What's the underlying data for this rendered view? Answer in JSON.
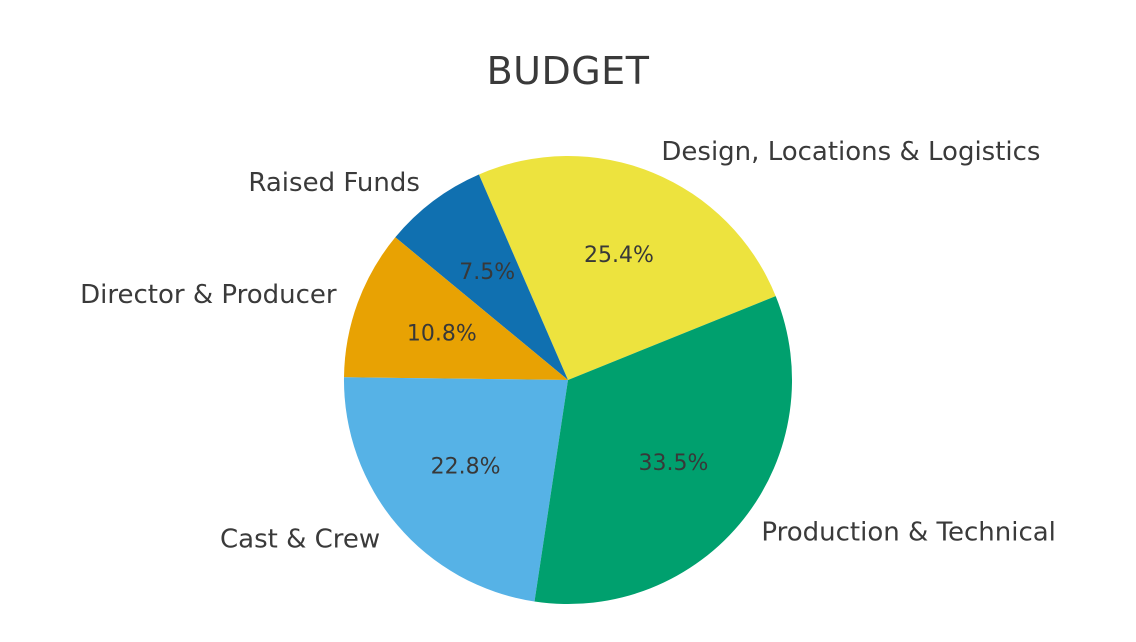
{
  "chart_data": {
    "type": "pie",
    "title": "BUDGET",
    "slices": [
      {
        "label": "Design, Locations & Logistics",
        "value": 25.4,
        "pct_label": "25.4%",
        "color": "#EDE33E"
      },
      {
        "label": "Raised Funds",
        "value": 7.5,
        "pct_label": "7.5%",
        "color": "#1070B0"
      },
      {
        "label": "Director & Producer",
        "value": 10.8,
        "pct_label": "10.8%",
        "color": "#E8A203"
      },
      {
        "label": "Cast & Crew",
        "value": 22.8,
        "pct_label": "22.8%",
        "color": "#56B2E6"
      },
      {
        "label": "Production & Technical",
        "value": 33.5,
        "pct_label": "33.5%",
        "color": "#00A06E"
      }
    ],
    "start_angle_deg": 22,
    "direction": "counterclockwise",
    "legend": "none",
    "gridlines": "off",
    "title_color": "#3A3A3A",
    "label_color": "#3A3A3A",
    "pct_color": "#383838",
    "background": "#FFFFFF"
  }
}
